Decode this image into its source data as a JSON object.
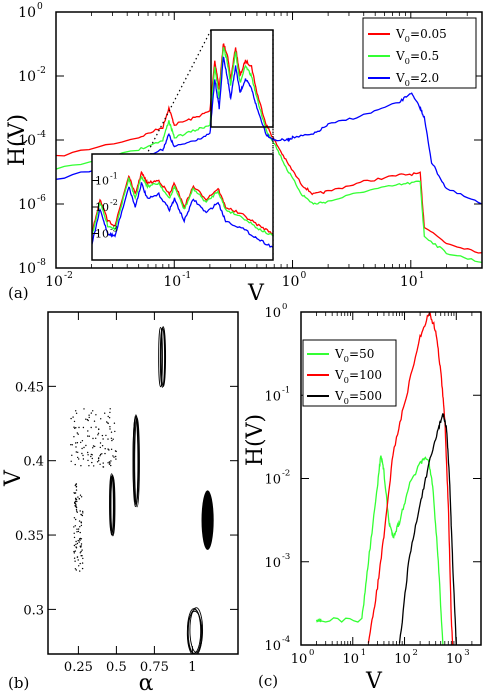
{
  "chart_data": [
    {
      "panel": "(a)",
      "type": "line",
      "title": "",
      "xlabel": "V",
      "ylabel": "H(V)",
      "xscale": "log",
      "yscale": "log",
      "xlim": [
        0.01,
        40
      ],
      "ylim": [
        1e-08,
        1
      ],
      "x_tick_labels": [
        "10",
        "-2",
        "10",
        "-1",
        "10",
        "0",
        "10",
        "1"
      ],
      "x_ticks": [
        0.01,
        0.1,
        1,
        10
      ],
      "y_ticks": [
        1e-08,
        1e-06,
        0.0001,
        0.01,
        1
      ],
      "y_tick_labels": [
        "10",
        "-8",
        "10",
        "-6",
        "10",
        "-4",
        "10",
        "-2",
        "10",
        "0"
      ],
      "legend": {
        "placement": "top-right",
        "entries": [
          {
            "base": "V",
            "sub": "0",
            "rest": "=0.05",
            "color": "#ff0000"
          },
          {
            "base": "V",
            "sub": "0",
            "rest": "=0.5",
            "color": "#33ff33"
          },
          {
            "base": "V",
            "sub": "0",
            "rest": "=2.0",
            "color": "#0000ff"
          }
        ]
      },
      "series": [
        {
          "color": "#ff0000",
          "points": [
            [
              0.01,
              3e-05
            ],
            [
              0.05,
              0.00012
            ],
            [
              0.08,
              0.00025
            ],
            [
              0.09,
              0.001
            ],
            [
              0.1,
              0.0003
            ],
            [
              0.15,
              0.0005
            ],
            [
              0.2,
              0.0008
            ],
            [
              0.22,
              0.03
            ],
            [
              0.24,
              0.004
            ],
            [
              0.26,
              0.1
            ],
            [
              0.28,
              0.05
            ],
            [
              0.3,
              0.008
            ],
            [
              0.33,
              0.08
            ],
            [
              0.36,
              0.01
            ],
            [
              0.4,
              0.03
            ],
            [
              0.45,
              0.02
            ],
            [
              0.5,
              0.003
            ],
            [
              0.6,
              0.0003
            ],
            [
              0.7,
              0.0001
            ],
            [
              0.9,
              2e-05
            ],
            [
              1.2,
              4e-06
            ],
            [
              1.5,
              2e-06
            ],
            [
              2,
              2.5e-06
            ],
            [
              4,
              5e-06
            ],
            [
              8,
              8e-06
            ],
            [
              12,
              9e-06
            ],
            [
              13,
              2e-07
            ],
            [
              20,
              6e-08
            ],
            [
              40,
              3e-08
            ]
          ]
        },
        {
          "color": "#33ff33",
          "points": [
            [
              0.01,
              1.2e-05
            ],
            [
              0.05,
              5e-05
            ],
            [
              0.08,
              0.0001
            ],
            [
              0.09,
              0.0004
            ],
            [
              0.1,
              0.00012
            ],
            [
              0.15,
              0.0002
            ],
            [
              0.2,
              0.0003
            ],
            [
              0.22,
              0.02
            ],
            [
              0.24,
              0.002
            ],
            [
              0.26,
              0.08
            ],
            [
              0.28,
              0.03
            ],
            [
              0.3,
              0.005
            ],
            [
              0.33,
              0.06
            ],
            [
              0.36,
              0.006
            ],
            [
              0.4,
              0.02
            ],
            [
              0.45,
              0.01
            ],
            [
              0.5,
              0.002
            ],
            [
              0.6,
              0.0002
            ],
            [
              0.7,
              8e-05
            ],
            [
              0.9,
              1.2e-05
            ],
            [
              1.2,
              2e-06
            ],
            [
              1.5,
              1e-06
            ],
            [
              2,
              1.2e-06
            ],
            [
              4,
              2.5e-06
            ],
            [
              8,
              4e-06
            ],
            [
              12,
              5e-06
            ],
            [
              13,
              1e-07
            ],
            [
              20,
              3e-08
            ],
            [
              40,
              1.5e-08
            ]
          ]
        },
        {
          "color": "#0000ff",
          "points": [
            [
              0.01,
              6e-06
            ],
            [
              0.05,
              2.5e-05
            ],
            [
              0.08,
              5e-05
            ],
            [
              0.09,
              0.00015
            ],
            [
              0.1,
              6e-05
            ],
            [
              0.15,
              0.0001
            ],
            [
              0.2,
              0.00015
            ],
            [
              0.22,
              0.008
            ],
            [
              0.24,
              0.001
            ],
            [
              0.26,
              0.04
            ],
            [
              0.28,
              0.01
            ],
            [
              0.3,
              0.002
            ],
            [
              0.33,
              0.02
            ],
            [
              0.36,
              0.003
            ],
            [
              0.4,
              0.008
            ],
            [
              0.45,
              0.004
            ],
            [
              0.5,
              0.001
            ],
            [
              0.6,
              0.00015
            ],
            [
              0.7,
              0.0001
            ],
            [
              0.9,
              0.0001
            ],
            [
              1,
              0.00012
            ],
            [
              1.5,
              0.00015
            ],
            [
              2,
              0.0003
            ],
            [
              4,
              0.0006
            ],
            [
              8,
              0.0015
            ],
            [
              10,
              0.003
            ],
            [
              12,
              0.001
            ],
            [
              13,
              0.0005
            ],
            [
              15,
              2e-05
            ],
            [
              20,
              3e-06
            ],
            [
              40,
              1e-06
            ]
          ]
        }
      ],
      "inset": {
        "xlim": [
          0.2,
          0.6
        ],
        "ylim": [
          0.0001,
          1
        ],
        "y_ticks": [
          0.001,
          0.01,
          0.1
        ],
        "y_tick_labels": [
          "10",
          "-3",
          "10",
          "-2",
          "10",
          "-1"
        ],
        "series": [
          {
            "color": "#ff0000",
            "points": [
              [
                0.2,
                0.001
              ],
              [
                0.21,
                0.02
              ],
              [
                0.22,
                0.003
              ],
              [
                0.23,
                0.002
              ],
              [
                0.25,
                0.15
              ],
              [
                0.26,
                0.03
              ],
              [
                0.27,
                0.2
              ],
              [
                0.28,
                0.08
              ],
              [
                0.3,
                0.1
              ],
              [
                0.32,
                0.03
              ],
              [
                0.33,
                0.08
              ],
              [
                0.35,
                0.01
              ],
              [
                0.37,
                0.06
              ],
              [
                0.4,
                0.02
              ],
              [
                0.43,
                0.05
              ],
              [
                0.45,
                0.01
              ],
              [
                0.5,
                0.005
              ],
              [
                0.55,
                0.002
              ],
              [
                0.6,
                0.001
              ]
            ]
          },
          {
            "color": "#33ff33",
            "points": [
              [
                0.2,
                0.0008
              ],
              [
                0.21,
                0.015
              ],
              [
                0.22,
                0.002
              ],
              [
                0.23,
                0.0015
              ],
              [
                0.25,
                0.12
              ],
              [
                0.26,
                0.02
              ],
              [
                0.27,
                0.15
              ],
              [
                0.28,
                0.06
              ],
              [
                0.3,
                0.08
              ],
              [
                0.32,
                0.02
              ],
              [
                0.33,
                0.06
              ],
              [
                0.35,
                0.008
              ],
              [
                0.37,
                0.05
              ],
              [
                0.4,
                0.015
              ],
              [
                0.43,
                0.04
              ],
              [
                0.45,
                0.008
              ],
              [
                0.5,
                0.004
              ],
              [
                0.55,
                0.0015
              ],
              [
                0.6,
                0.0008
              ]
            ]
          },
          {
            "color": "#0000ff",
            "points": [
              [
                0.2,
                0.0004
              ],
              [
                0.21,
                0.008
              ],
              [
                0.22,
                0.001
              ],
              [
                0.23,
                0.0008
              ],
              [
                0.25,
                0.06
              ],
              [
                0.26,
                0.01
              ],
              [
                0.27,
                0.08
              ],
              [
                0.28,
                0.02
              ],
              [
                0.3,
                0.03
              ],
              [
                0.32,
                0.008
              ],
              [
                0.33,
                0.02
              ],
              [
                0.35,
                0.003
              ],
              [
                0.37,
                0.02
              ],
              [
                0.4,
                0.006
              ],
              [
                0.43,
                0.015
              ],
              [
                0.45,
                0.003
              ],
              [
                0.5,
                0.0015
              ],
              [
                0.55,
                0.0006
              ],
              [
                0.6,
                0.0003
              ]
            ]
          }
        ]
      }
    },
    {
      "panel": "(b)",
      "type": "scatter",
      "title": "",
      "xlabel": "α",
      "ylabel": "V",
      "xlim": [
        0.05,
        1.3
      ],
      "ylim": [
        0.27,
        0.5
      ],
      "x_ticks": [
        0.25,
        0.5,
        0.75,
        1
      ],
      "x_tick_labels": [
        "0.25",
        "0.5",
        "0.75",
        "1"
      ],
      "y_ticks": [
        0.3,
        0.35,
        0.4,
        0.45
      ],
      "y_tick_labels": [
        "0.3",
        "0.35",
        "0.4",
        "0.45"
      ],
      "color": "#000000",
      "clusters": [
        {
          "kind": "scatter",
          "cx": 0.25,
          "cy": 0.355,
          "rx": 0.03,
          "ry": 0.03,
          "n": 90
        },
        {
          "kind": "scatter",
          "cx": 0.35,
          "cy": 0.415,
          "rx": 0.15,
          "ry": 0.02,
          "n": 120
        },
        {
          "kind": "loop",
          "cx": 0.47,
          "cy": 0.37,
          "rx": 0.015,
          "ry": 0.02
        },
        {
          "kind": "loop",
          "cx": 0.63,
          "cy": 0.4,
          "rx": 0.02,
          "ry": 0.03
        },
        {
          "kind": "loop",
          "cx": 0.8,
          "cy": 0.47,
          "rx": 0.015,
          "ry": 0.02
        },
        {
          "kind": "blob",
          "cx": 1.1,
          "cy": 0.36,
          "rx": 0.04,
          "ry": 0.02
        },
        {
          "kind": "loop",
          "cx": 1.02,
          "cy": 0.285,
          "rx": 0.05,
          "ry": 0.015
        }
      ]
    },
    {
      "panel": "(c)",
      "type": "line",
      "title": "",
      "xlabel": "V",
      "ylabel": "H(V)",
      "xscale": "log",
      "yscale": "log",
      "xlim": [
        1,
        3000
      ],
      "ylim": [
        0.0001,
        1
      ],
      "x_ticks": [
        1,
        10,
        100,
        1000
      ],
      "x_tick_labels": [
        "10",
        "0",
        "10",
        "1",
        "10",
        "2",
        "10",
        "3"
      ],
      "y_ticks": [
        0.0001,
        0.001,
        0.01,
        0.1,
        1
      ],
      "y_tick_labels": [
        "10",
        "-4",
        "10",
        "-3",
        "10",
        "-2",
        "10",
        "-1",
        "10",
        "0"
      ],
      "legend": {
        "placement": "top-left",
        "entries": [
          {
            "base": "V",
            "sub": "0",
            "rest": "=50",
            "color": "#33ff33"
          },
          {
            "base": "V",
            "sub": "0",
            "rest": "=100",
            "color": "#ff0000"
          },
          {
            "base": "V",
            "sub": "0",
            "rest": "=500",
            "color": "#000000"
          }
        ]
      },
      "series": [
        {
          "color": "#33ff33",
          "points": [
            [
              2,
              0.0002
            ],
            [
              2.5,
              0.0002
            ],
            [
              15,
              0.0002
            ],
            [
              20,
              0.001
            ],
            [
              30,
              0.008
            ],
            [
              35,
              0.02
            ],
            [
              40,
              0.012
            ],
            [
              50,
              0.003
            ],
            [
              60,
              0.002
            ],
            [
              80,
              0.003
            ],
            [
              120,
              0.008
            ],
            [
              200,
              0.015
            ],
            [
              280,
              0.018
            ],
            [
              350,
              0.008
            ],
            [
              450,
              0.001
            ],
            [
              550,
              0.0001
            ]
          ]
        },
        {
          "color": "#ff0000",
          "points": [
            [
              20,
              0.0001
            ],
            [
              30,
              0.0005
            ],
            [
              40,
              0.002
            ],
            [
              60,
              0.02
            ],
            [
              100,
              0.08
            ],
            [
              200,
              0.5
            ],
            [
              300,
              1
            ],
            [
              400,
              0.6
            ],
            [
              500,
              0.2
            ],
            [
              600,
              0.05
            ],
            [
              700,
              0.005
            ],
            [
              800,
              0.0002
            ],
            [
              850,
              0.0001
            ]
          ]
        },
        {
          "color": "#000000",
          "points": [
            [
              80,
              0.0001
            ],
            [
              120,
              0.001
            ],
            [
              200,
              0.005
            ],
            [
              300,
              0.015
            ],
            [
              450,
              0.04
            ],
            [
              550,
              0.06
            ],
            [
              650,
              0.04
            ],
            [
              750,
              0.008
            ],
            [
              850,
              0.001
            ],
            [
              1000,
              0.0001
            ]
          ]
        }
      ]
    }
  ]
}
